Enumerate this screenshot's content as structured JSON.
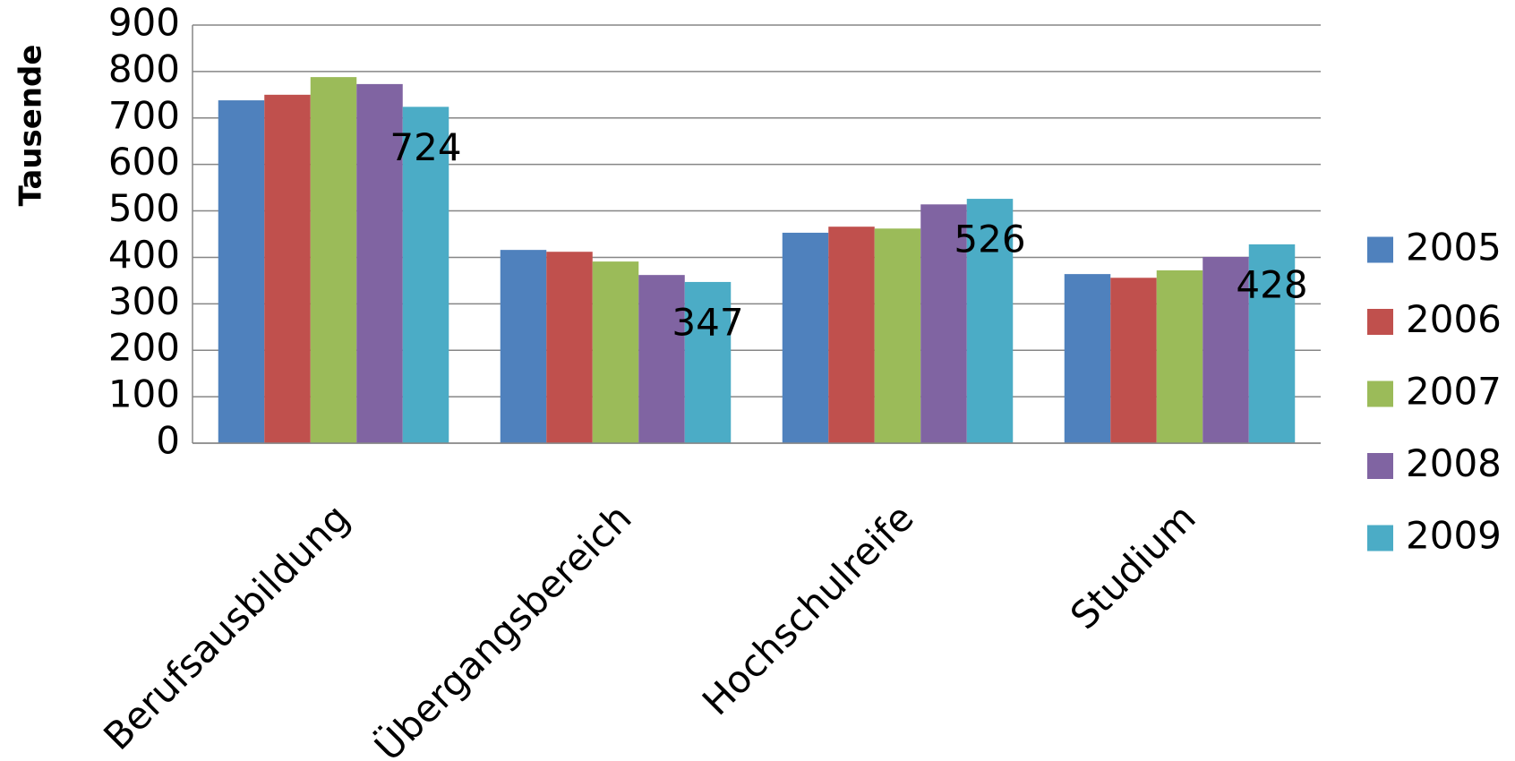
{
  "chart_data": {
    "type": "bar",
    "y_label": "Tausende",
    "categories": [
      "Berufsausbildung",
      "Übergangsbereich",
      "Hochschulreife",
      "Studium"
    ],
    "series": [
      {
        "name": "2005",
        "color": "#4f81bd",
        "values": [
          738,
          416,
          453,
          364
        ]
      },
      {
        "name": "2006",
        "color": "#c0504d",
        "values": [
          750,
          412,
          466,
          356
        ]
      },
      {
        "name": "2007",
        "color": "#9bbb59",
        "values": [
          788,
          391,
          462,
          372
        ]
      },
      {
        "name": "2008",
        "color": "#8064a2",
        "values": [
          773,
          362,
          514,
          401
        ]
      },
      {
        "name": "2009",
        "color": "#4bacc6",
        "values": [
          724,
          347,
          526,
          428
        ],
        "show_labels": true
      }
    ],
    "ylim": [
      0,
      900
    ],
    "yticks": [
      0,
      100,
      200,
      300,
      400,
      500,
      600,
      700,
      800,
      900
    ],
    "grid": true,
    "legend": "right"
  }
}
